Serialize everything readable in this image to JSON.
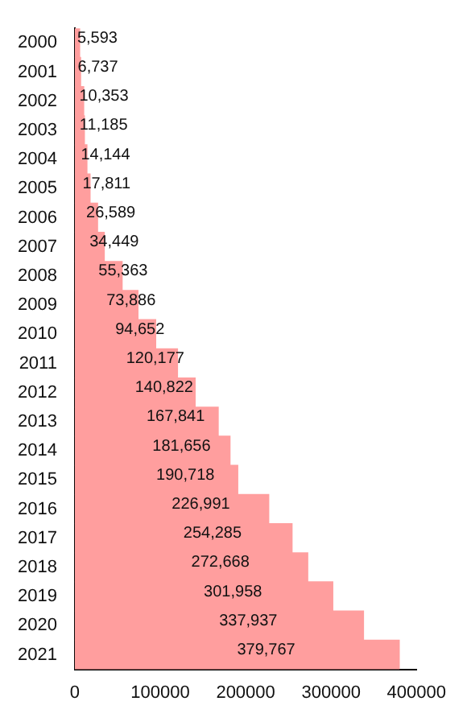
{
  "chart_data": {
    "type": "bar",
    "orientation": "horizontal",
    "categories": [
      "2000",
      "2001",
      "2002",
      "2003",
      "2004",
      "2005",
      "2006",
      "2007",
      "2008",
      "2009",
      "2010",
      "2011",
      "2012",
      "2013",
      "2014",
      "2015",
      "2016",
      "2017",
      "2018",
      "2019",
      "2020",
      "2021"
    ],
    "values": [
      5593,
      6737,
      10353,
      11185,
      14144,
      17811,
      26589,
      34449,
      55363,
      73886,
      94652,
      120177,
      140822,
      167841,
      181656,
      190718,
      226991,
      254285,
      272668,
      301958,
      337937,
      379767
    ],
    "value_labels": [
      "5,593",
      "6,737",
      "10,353",
      "11,185",
      "14,144",
      "17,811",
      "26,589",
      "34,449",
      "55,363",
      "73,886",
      "94,652",
      "120,177",
      "140,822",
      "167,841",
      "181,656",
      "190,718",
      "226,991",
      "254,285",
      "272,668",
      "301,958",
      "337,937",
      "379,767"
    ],
    "color": "#ff9e9e",
    "xlim": [
      0,
      400000
    ],
    "xticks": [
      0,
      100000,
      200000,
      300000,
      400000
    ],
    "grid": false,
    "legend": false
  }
}
